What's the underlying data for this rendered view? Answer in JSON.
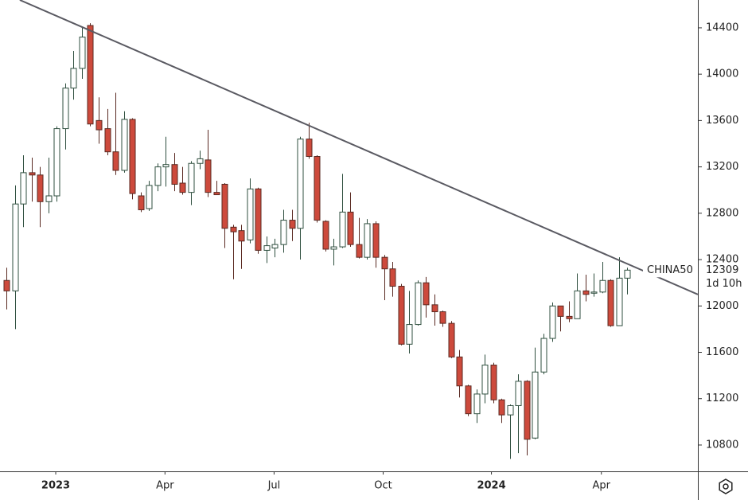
{
  "chart_data": {
    "type": "candlestick",
    "symbol": "CHINA50",
    "countdown": "1d 10h",
    "open": [
      12220,
      12130,
      12880,
      13150,
      13130,
      12900,
      12950,
      13530,
      13880,
      14050,
      14420,
      13600,
      13530,
      13330,
      13170,
      13610,
      12950,
      12840,
      13040,
      13200,
      13220,
      13060,
      12980,
      13230,
      13260,
      12980,
      13050,
      12680,
      12650,
      12570,
      13010,
      12480,
      12500,
      12530,
      12740,
      12670,
      13440,
      13290,
      12730,
      12490,
      12510,
      12810,
      12530,
      12420,
      12710,
      12420,
      12320,
      12170,
      11670,
      11840,
      12200,
      12010,
      11950,
      11850,
      11560,
      11310,
      11070,
      11240,
      11490,
      11190,
      11060,
      11140,
      11350,
      10860,
      11430,
      11720,
      12000,
      11910,
      11890,
      12130,
      12110,
      12120,
      12220,
      11830,
      12240
    ],
    "high": [
      12330,
      13040,
      13300,
      13280,
      13200,
      13280,
      13550,
      13920,
      14200,
      14400,
      14440,
      13800,
      13700,
      13840,
      13680,
      13620,
      12980,
      13080,
      13230,
      13460,
      13320,
      13200,
      13250,
      13340,
      13520,
      13080,
      13060,
      12700,
      12700,
      13100,
      13020,
      12600,
      12580,
      12830,
      12830,
      13460,
      13580,
      13300,
      12740,
      12580,
      13140,
      12980,
      12760,
      12750,
      12730,
      12440,
      12380,
      12190,
      12130,
      12220,
      12250,
      12100,
      11960,
      11870,
      11620,
      11320,
      11280,
      11580,
      11510,
      11200,
      11150,
      11410,
      11360,
      11640,
      11760,
      12030,
      12000,
      12040,
      12280,
      12270,
      12280,
      12380,
      12230,
      12420,
      12330
    ],
    "low": [
      11970,
      11800,
      12680,
      12900,
      12680,
      12800,
      12900,
      13350,
      13780,
      13960,
      13550,
      13400,
      13300,
      13130,
      13150,
      12920,
      12810,
      12820,
      12990,
      13030,
      12990,
      12960,
      12870,
      13180,
      12940,
      12960,
      12500,
      12230,
      12320,
      12540,
      12450,
      12370,
      12420,
      12460,
      12560,
      12400,
      13270,
      12720,
      12470,
      12350,
      12500,
      12510,
      12410,
      12400,
      12330,
      12050,
      12080,
      11660,
      11590,
      11830,
      11900,
      11830,
      11820,
      11550,
      11210,
      11050,
      10990,
      11160,
      11160,
      10990,
      10680,
      10730,
      10710,
      10850,
      11410,
      11690,
      11780,
      11860,
      11890,
      12040,
      12080,
      12110,
      11820,
      11830,
      12100
    ],
    "close": [
      12130,
      12880,
      13150,
      13130,
      12900,
      12950,
      13530,
      13880,
      14050,
      14320,
      13570,
      13520,
      13330,
      13170,
      13610,
      12970,
      12830,
      13040,
      13200,
      13220,
      13050,
      12980,
      13230,
      13270,
      12980,
      12960,
      12670,
      12640,
      12560,
      13010,
      12480,
      12520,
      12530,
      12740,
      12670,
      13440,
      13290,
      12740,
      12490,
      12510,
      12810,
      12530,
      12420,
      12710,
      12420,
      12320,
      12170,
      11670,
      11840,
      12200,
      12010,
      11950,
      11850,
      11560,
      11310,
      11070,
      11240,
      11490,
      11190,
      11060,
      11140,
      11350,
      10850,
      11430,
      11720,
      12000,
      11910,
      11890,
      12130,
      12100,
      12120,
      12220,
      11830,
      12240,
      12309
    ],
    "up_color": "#ffffff",
    "up_border": "#2f4f3f",
    "down_color": "#cd4a3c",
    "down_border": "#5a2a22",
    "xlim": [
      -0.76,
      82.4
    ],
    "xticks": [
      {
        "value": 5.88,
        "label": "2023"
      },
      {
        "value": 18.9,
        "label": "Apr"
      },
      {
        "value": 31.9,
        "label": "Jul"
      },
      {
        "value": 44.9,
        "label": "Oct"
      },
      {
        "value": 57.8,
        "label": "2024"
      },
      {
        "value": 70.9,
        "label": "Apr"
      }
    ],
    "ylim": [
      10573,
      14640
    ],
    "yticks": [
      10800,
      11200,
      11600,
      12000,
      12400,
      12800,
      13200,
      13600,
      14000,
      14400
    ],
    "trendline": {
      "x": [
        1.6,
        82.4
      ],
      "y": [
        14640,
        12099
      ],
      "color": "#5a5a62"
    }
  }
}
